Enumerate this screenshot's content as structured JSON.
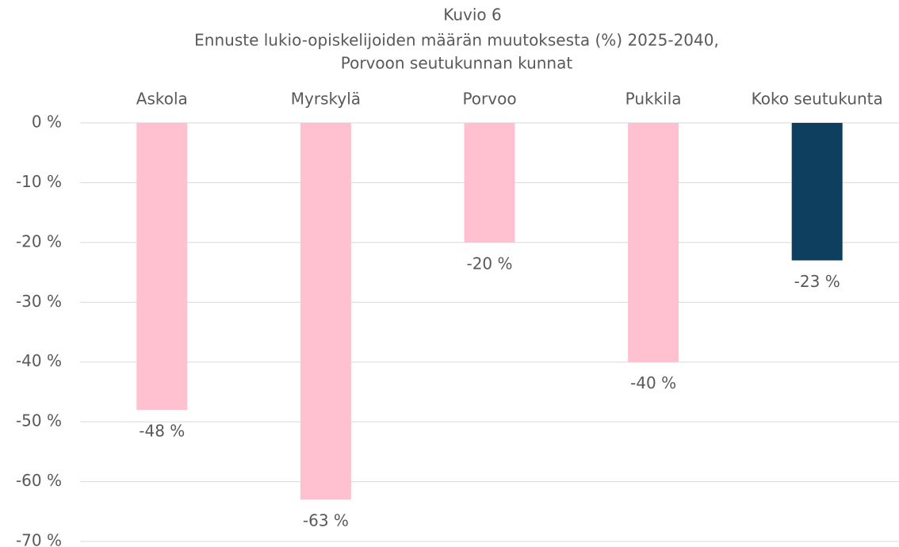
{
  "chart_data": {
    "type": "bar",
    "title": "Kuvio 6",
    "subtitle": [
      "Ennuste lukio-opiskelijoiden määrän muutoksesta (%) 2025-2040,",
      "Porvoon seutukunnan kunnat"
    ],
    "categories": [
      "Askola",
      "Myrskylä",
      "Porvoo",
      "Pukkila",
      "Koko seutukunta"
    ],
    "values": [
      -48,
      -63,
      -20,
      -40,
      -23
    ],
    "value_labels": [
      "-48 %",
      "-63 %",
      "-20 %",
      "-40 %",
      "-23 %"
    ],
    "colors": [
      "#ffc0cf",
      "#ffc0cf",
      "#ffc0cf",
      "#ffc0cf",
      "#0f3f5f"
    ],
    "ylim": [
      -70,
      0
    ],
    "yticks": [
      {
        "value": 0,
        "label": "0 %"
      },
      {
        "value": -10,
        "label": "-10 %"
      },
      {
        "value": -20,
        "label": "-20 %"
      },
      {
        "value": -30,
        "label": "-30 %"
      },
      {
        "value": -40,
        "label": "-40 %"
      },
      {
        "value": -50,
        "label": "-50 %"
      },
      {
        "value": -60,
        "label": "-60 %"
      },
      {
        "value": -70,
        "label": "-70 %"
      }
    ],
    "grid": true
  }
}
